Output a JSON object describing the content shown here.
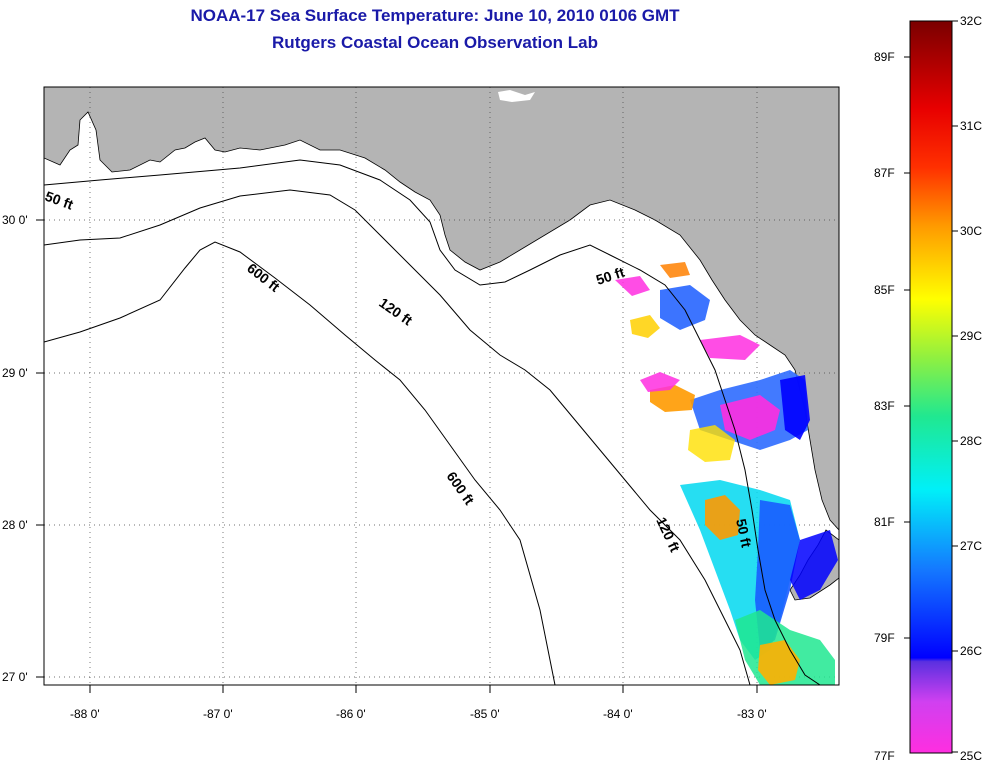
{
  "title": "NOAA-17 Sea Surface Temperature:  June 10, 2010 0106 GMT",
  "subtitle": "Rutgers Coastal Ocean Observation Lab",
  "map": {
    "lon_labels": [
      "-88 0'",
      "-87 0'",
      "-86 0'",
      "-85 0'",
      "-84 0'",
      "-83 0'"
    ],
    "lat_labels": [
      "30 0'",
      "29 0'",
      "28 0'",
      "27 0'"
    ],
    "contours": [
      {
        "label": "50 ft"
      },
      {
        "label": "600 ft"
      },
      {
        "label": "120 ft"
      },
      {
        "label": "50 ft"
      },
      {
        "label": "600 ft"
      },
      {
        "label": "120 ft"
      },
      {
        "label": "50 ft"
      }
    ],
    "colors": {
      "land": "#b4b4b4",
      "water": "#ffffff",
      "title": "#1a1aa8"
    }
  },
  "colorbar": {
    "fahrenheit": [
      "89F",
      "87F",
      "85F",
      "83F",
      "81F",
      "79F",
      "77F"
    ],
    "celsius": [
      "32C",
      "31C",
      "30C",
      "29C",
      "28C",
      "27C",
      "26C",
      "25C"
    ]
  }
}
